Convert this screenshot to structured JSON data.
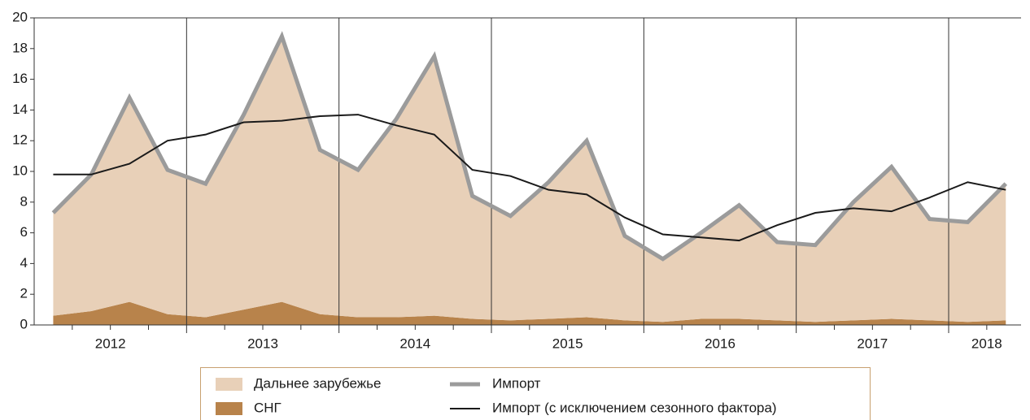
{
  "chart_data": {
    "type": "stacked-area-line",
    "year_labels": [
      "2012",
      "2013",
      "2014",
      "2015",
      "2016",
      "2017",
      "2018"
    ],
    "quarters_per_year": 4,
    "ylim": [
      0,
      20
    ],
    "yticks": [
      0,
      2,
      4,
      6,
      8,
      10,
      12,
      14,
      16,
      18,
      20
    ],
    "series": [
      {
        "name": "СНГ",
        "kind": "area",
        "color": "#b8834b",
        "values": [
          0.6,
          0.9,
          1.5,
          0.7,
          0.5,
          1.0,
          1.5,
          0.7,
          0.5,
          0.5,
          0.6,
          0.4,
          0.3,
          0.4,
          0.5,
          0.3,
          0.2,
          0.4,
          0.4,
          0.3,
          0.2,
          0.3,
          0.4,
          0.3,
          0.2,
          0.3
        ]
      },
      {
        "name": "Дальнее зарубежье",
        "kind": "area",
        "color": "#e8d0b8",
        "values": [
          6.7,
          8.9,
          13.3,
          9.4,
          8.7,
          12.7,
          17.3,
          10.7,
          9.6,
          12.9,
          16.9,
          8.0,
          6.8,
          8.9,
          11.5,
          5.5,
          4.1,
          5.6,
          7.4,
          5.1,
          5.0,
          7.7,
          9.9,
          6.6,
          6.5,
          8.9
        ]
      },
      {
        "name": "Импорт",
        "kind": "line",
        "color": "#9b9b9b",
        "width": 5,
        "values": [
          7.3,
          9.8,
          14.8,
          10.1,
          9.2,
          13.7,
          18.8,
          11.4,
          10.1,
          13.4,
          17.5,
          8.4,
          7.1,
          9.3,
          12.0,
          5.8,
          4.3,
          6.0,
          7.8,
          5.4,
          5.2,
          8.0,
          10.3,
          6.9,
          6.7,
          9.2
        ]
      },
      {
        "name": "Импорт (с исключением сезонного фактора)",
        "kind": "line",
        "color": "#1a1a1a",
        "width": 2,
        "values": [
          9.8,
          9.8,
          10.5,
          12.0,
          12.4,
          13.2,
          13.3,
          13.6,
          13.7,
          13.0,
          12.4,
          10.1,
          9.7,
          8.8,
          8.5,
          7.0,
          5.9,
          5.7,
          5.5,
          6.5,
          7.3,
          7.6,
          7.4,
          8.3,
          9.3,
          8.8
        ]
      }
    ],
    "legend_order": [
      1,
      0,
      2,
      3
    ]
  }
}
